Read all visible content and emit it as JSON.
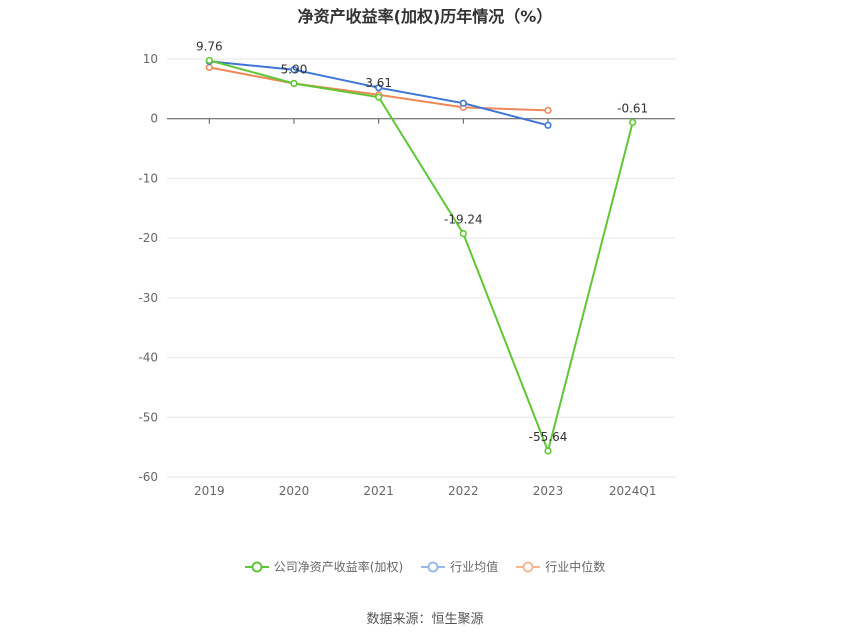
{
  "chart_data": {
    "type": "line",
    "title": "净资产收益率(加权)历年情况（%）",
    "categories": [
      "2019",
      "2020",
      "2021",
      "2022",
      "2023",
      "2024Q1"
    ],
    "ylim": [
      -60,
      10
    ],
    "yticks": [
      10,
      0,
      -10,
      -20,
      -30,
      -40,
      -50,
      -60
    ],
    "grid": true,
    "legend_position": "bottom",
    "series": [
      {
        "name": "公司净资产收益率(加权)",
        "color": "#5fc734",
        "values": [
          9.76,
          5.9,
          3.61,
          -19.24,
          -55.64,
          -0.61
        ],
        "labels": [
          "9.76",
          "5.90",
          "3.61",
          "-19.24",
          "-55.64",
          "-0.61"
        ]
      },
      {
        "name": "行业均值",
        "color": "#3d76d6",
        "values": [
          9.6,
          8.2,
          5.2,
          2.6,
          -1.1,
          null
        ]
      },
      {
        "name": "行业中位数",
        "color": "#ee8858",
        "values": [
          8.6,
          5.9,
          4.0,
          1.9,
          1.4,
          null
        ]
      }
    ]
  },
  "source": "数据来源：恒生聚源"
}
